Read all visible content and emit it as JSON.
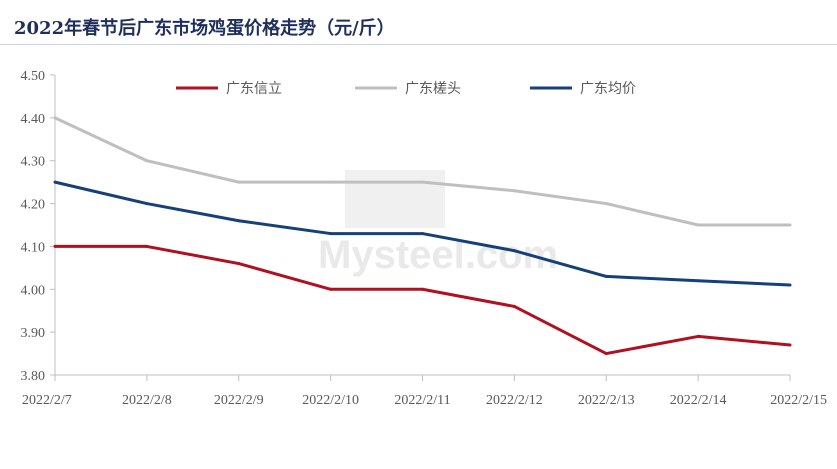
{
  "title": "2022年春节后广东市场鸡蛋价格走势（元/斤）",
  "watermark": "Mysteel.com",
  "chart_data": {
    "type": "line",
    "title": "2022年春节后广东市场鸡蛋价格走势（元/斤）",
    "xlabel": "",
    "ylabel": "",
    "categories": [
      "2022/2/7",
      "2022/2/8",
      "2022/2/9",
      "2022/2/10",
      "2022/2/11",
      "2022/2/12",
      "2022/2/13",
      "2022/2/14",
      "2022/2/15"
    ],
    "ylim": [
      3.8,
      4.5
    ],
    "yticks": [
      "3.80",
      "3.90",
      "4.00",
      "4.10",
      "4.20",
      "4.30",
      "4.40",
      "4.50"
    ],
    "grid": false,
    "legend_position": "top",
    "series": [
      {
        "name": "广东信立",
        "color": "#b01020",
        "values": [
          4.1,
          4.1,
          4.06,
          4.0,
          4.0,
          3.96,
          3.85,
          3.89,
          3.87
        ]
      },
      {
        "name": "广东槎头",
        "color": "#bfbfbf",
        "values": [
          4.4,
          4.3,
          4.25,
          4.25,
          4.25,
          4.23,
          4.2,
          4.15,
          4.15
        ]
      },
      {
        "name": "广东均价",
        "color": "#16407a",
        "values": [
          4.25,
          4.2,
          4.16,
          4.13,
          4.13,
          4.09,
          4.03,
          4.02,
          4.01
        ]
      }
    ]
  }
}
